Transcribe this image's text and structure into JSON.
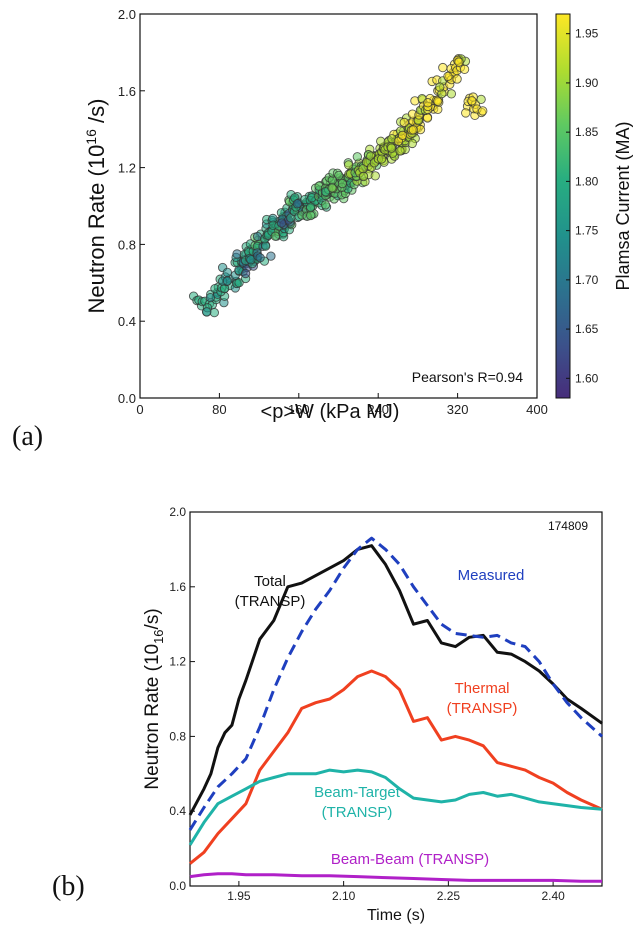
{
  "chart_data": [
    {
      "panel_label": "(a)",
      "type": "scatter",
      "xlabel": "<p>W  (kPa MJ)",
      "ylabel": "Neutron Rate (10",
      "ylabel_sup": "16",
      "ylabel_suffix": " /s)",
      "xlim": [
        0,
        400
      ],
      "ylim": [
        0,
        2.0
      ],
      "x_ticks": [
        "0",
        "80",
        "160",
        "240",
        "320",
        "400"
      ],
      "y_ticks": [
        "0.0",
        "0.4",
        "0.8",
        "1.2",
        "1.6",
        "2.0"
      ],
      "annotation": "Pearson's R=0.94",
      "colorbar": {
        "label": "Plamsa Current (MA)",
        "range": [
          1.58,
          1.97
        ],
        "ticks": [
          "1.60",
          "1.65",
          "1.70",
          "1.75",
          "1.80",
          "1.85",
          "1.90",
          "1.95"
        ],
        "colors": [
          "#472d7b",
          "#3b528b",
          "#2c728e",
          "#21918c",
          "#28ae80",
          "#5ec962",
          "#addc30",
          "#fde725"
        ]
      },
      "points_note": "cloud of ~600 points, trend from (60,0.48) to (335,1.85)",
      "x": [
        62,
        70,
        78,
        85,
        90,
        96,
        100,
        104,
        108,
        110,
        114,
        118,
        120,
        124,
        128,
        130,
        134,
        138,
        140,
        144,
        148,
        150,
        154,
        158,
        160,
        164,
        168,
        170,
        174,
        178,
        180,
        184,
        188,
        190,
        194,
        198,
        200,
        204,
        208,
        210,
        214,
        218,
        220,
        224,
        228,
        230,
        234,
        238,
        240,
        244,
        248,
        250,
        254,
        258,
        260,
        264,
        268,
        270,
        274,
        278,
        280,
        284,
        290,
        296,
        300,
        306,
        312,
        318,
        322,
        330,
        338
      ],
      "y": [
        0.48,
        0.49,
        0.55,
        0.57,
        0.62,
        0.64,
        0.66,
        0.7,
        0.68,
        0.73,
        0.74,
        0.77,
        0.8,
        0.79,
        0.84,
        0.86,
        0.88,
        0.9,
        0.92,
        0.93,
        0.95,
        0.96,
        0.98,
        0.99,
        1.0,
        0.97,
        1.01,
        1.02,
        1.0,
        1.03,
        1.05,
        1.07,
        1.06,
        1.08,
        1.1,
        1.09,
        1.12,
        1.13,
        1.11,
        1.15,
        1.17,
        1.16,
        1.18,
        1.2,
        1.22,
        1.21,
        1.24,
        1.26,
        1.25,
        1.28,
        1.3,
        1.29,
        1.32,
        1.34,
        1.35,
        1.33,
        1.37,
        1.4,
        1.38,
        1.42,
        1.45,
        1.5,
        1.52,
        1.55,
        1.6,
        1.62,
        1.68,
        1.72,
        1.75,
        1.52,
        1.53
      ],
      "current": [
        1.8,
        1.78,
        1.76,
        1.79,
        1.74,
        1.77,
        1.8,
        1.72,
        1.66,
        1.81,
        1.79,
        1.78,
        1.82,
        1.7,
        1.8,
        1.76,
        1.81,
        1.83,
        1.79,
        1.78,
        1.82,
        1.65,
        1.8,
        1.84,
        1.81,
        1.7,
        1.83,
        1.8,
        1.86,
        1.82,
        1.84,
        1.85,
        1.83,
        1.86,
        1.84,
        1.88,
        1.85,
        1.86,
        1.87,
        1.84,
        1.86,
        1.88,
        1.9,
        1.87,
        1.89,
        1.91,
        1.88,
        1.9,
        1.92,
        1.91,
        1.9,
        1.93,
        1.92,
        1.94,
        1.93,
        1.92,
        1.95,
        1.93,
        1.94,
        1.95,
        1.96,
        1.94,
        1.95,
        1.95,
        1.96,
        1.95,
        1.96,
        1.96,
        1.95,
        1.96,
        1.95
      ]
    },
    {
      "panel_label": "(b)",
      "type": "line",
      "xlabel": "Time (s)",
      "ylabel": "Neutron Rate (10",
      "ylabel_sub": "16",
      "ylabel_suffix": "/s)",
      "xlim": [
        1.88,
        2.47
      ],
      "ylim": [
        0,
        2.0
      ],
      "x_ticks": [
        1.95,
        2.1,
        2.25,
        2.4
      ],
      "x_tick_labels": [
        "1.95",
        "2.10",
        "2.25",
        "2.40"
      ],
      "y_ticks": [
        0.0,
        0.4,
        0.8,
        1.2,
        1.6,
        2.0
      ],
      "y_tick_labels": [
        "0.0",
        "0.4",
        "0.8",
        "1.2",
        "1.6",
        "2.0"
      ],
      "annotation": "174809",
      "series": [
        {
          "label_lines": [
            "Total",
            "(TRANSP)"
          ],
          "color": "#111111",
          "dash": false,
          "x": [
            1.88,
            1.9,
            1.91,
            1.92,
            1.93,
            1.94,
            1.95,
            1.96,
            1.98,
            2.0,
            2.02,
            2.04,
            2.06,
            2.08,
            2.1,
            2.12,
            2.14,
            2.16,
            2.18,
            2.2,
            2.22,
            2.24,
            2.26,
            2.28,
            2.3,
            2.32,
            2.34,
            2.36,
            2.38,
            2.4,
            2.42,
            2.44,
            2.47
          ],
          "y": [
            0.38,
            0.52,
            0.6,
            0.74,
            0.82,
            0.86,
            1.0,
            1.1,
            1.32,
            1.42,
            1.6,
            1.62,
            1.66,
            1.7,
            1.74,
            1.8,
            1.82,
            1.72,
            1.58,
            1.4,
            1.42,
            1.3,
            1.28,
            1.33,
            1.34,
            1.25,
            1.24,
            1.2,
            1.15,
            1.08,
            1.0,
            0.95,
            0.87
          ]
        },
        {
          "label_lines": [
            "Measured"
          ],
          "color": "#1f3fbf",
          "dash": true,
          "x": [
            1.88,
            1.9,
            1.92,
            1.94,
            1.96,
            1.98,
            2.0,
            2.02,
            2.04,
            2.06,
            2.08,
            2.1,
            2.12,
            2.14,
            2.16,
            2.18,
            2.2,
            2.22,
            2.24,
            2.26,
            2.28,
            2.3,
            2.32,
            2.34,
            2.36,
            2.38,
            2.4,
            2.42,
            2.44,
            2.47
          ],
          "y": [
            0.3,
            0.42,
            0.53,
            0.6,
            0.68,
            0.85,
            1.05,
            1.22,
            1.36,
            1.48,
            1.58,
            1.7,
            1.8,
            1.86,
            1.8,
            1.72,
            1.6,
            1.5,
            1.4,
            1.35,
            1.34,
            1.33,
            1.34,
            1.3,
            1.28,
            1.2,
            1.08,
            0.98,
            0.9,
            0.8
          ]
        },
        {
          "label_lines": [
            "Thermal",
            "(TRANSP)"
          ],
          "color": "#f04020",
          "dash": false,
          "x": [
            1.88,
            1.9,
            1.92,
            1.94,
            1.96,
            1.98,
            2.0,
            2.02,
            2.04,
            2.06,
            2.08,
            2.1,
            2.12,
            2.14,
            2.16,
            2.18,
            2.2,
            2.22,
            2.24,
            2.26,
            2.28,
            2.3,
            2.32,
            2.34,
            2.36,
            2.38,
            2.4,
            2.42,
            2.44,
            2.47
          ],
          "y": [
            0.12,
            0.18,
            0.28,
            0.36,
            0.44,
            0.62,
            0.72,
            0.82,
            0.95,
            0.98,
            1.0,
            1.05,
            1.12,
            1.15,
            1.12,
            1.05,
            0.88,
            0.9,
            0.78,
            0.8,
            0.78,
            0.75,
            0.66,
            0.64,
            0.62,
            0.58,
            0.55,
            0.5,
            0.46,
            0.41
          ]
        },
        {
          "label_lines": [
            "Beam-Target",
            "(TRANSP)"
          ],
          "color": "#1fb3a8",
          "dash": false,
          "x": [
            1.88,
            1.9,
            1.92,
            1.94,
            1.96,
            1.98,
            2.0,
            2.02,
            2.04,
            2.06,
            2.08,
            2.1,
            2.12,
            2.14,
            2.16,
            2.18,
            2.2,
            2.22,
            2.24,
            2.26,
            2.28,
            2.3,
            2.32,
            2.34,
            2.36,
            2.38,
            2.4,
            2.42,
            2.44,
            2.47
          ],
          "y": [
            0.22,
            0.34,
            0.44,
            0.48,
            0.52,
            0.56,
            0.58,
            0.6,
            0.6,
            0.6,
            0.62,
            0.61,
            0.62,
            0.61,
            0.58,
            0.52,
            0.47,
            0.46,
            0.45,
            0.46,
            0.49,
            0.5,
            0.48,
            0.49,
            0.47,
            0.45,
            0.44,
            0.43,
            0.42,
            0.41
          ]
        },
        {
          "label_lines": [
            "Beam-Beam (TRANSP)"
          ],
          "color": "#b020c8",
          "dash": false,
          "x": [
            1.88,
            1.9,
            1.92,
            1.94,
            1.96,
            1.98,
            2.0,
            2.04,
            2.08,
            2.12,
            2.16,
            2.2,
            2.24,
            2.28,
            2.32,
            2.36,
            2.4,
            2.44,
            2.47
          ],
          "y": [
            0.05,
            0.06,
            0.065,
            0.065,
            0.06,
            0.06,
            0.06,
            0.055,
            0.055,
            0.05,
            0.045,
            0.04,
            0.035,
            0.03,
            0.03,
            0.03,
            0.03,
            0.025,
            0.025
          ]
        }
      ]
    }
  ]
}
